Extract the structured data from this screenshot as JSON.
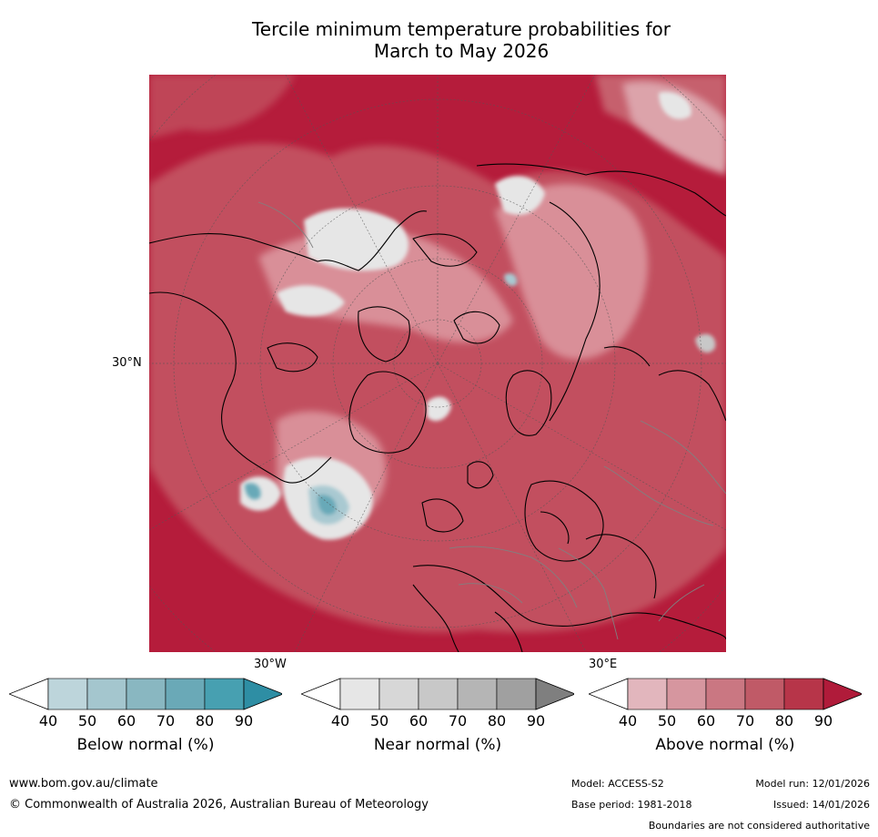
{
  "title_line1": "Tercile minimum temperature probabilities for",
  "title_line2": "March to May 2026",
  "map": {
    "label_30n": "30°N",
    "label_30w": "30°W",
    "label_30e": "30°E",
    "colors": {
      "dominant_above": "#b51c3b",
      "above_mid": "#c24f5e",
      "above_light": "#d98f98",
      "near_light": "#e6e6e6",
      "near_mid": "#c8c8c8",
      "below_light": "#a9c9d1",
      "below_mid": "#68a9b8",
      "coast": "#000000",
      "border": "#808080",
      "grid": "#555555"
    }
  },
  "colorbars": [
    {
      "title": "Below normal (%)",
      "ticks": [
        "40",
        "50",
        "60",
        "70",
        "80",
        "90"
      ],
      "colors": [
        "#ffffff",
        "#bdd5db",
        "#a4c6ce",
        "#89b7c1",
        "#6aa9b7",
        "#47a0b1",
        "#2e8ea4"
      ]
    },
    {
      "title": "Near normal (%)",
      "ticks": [
        "40",
        "50",
        "60",
        "70",
        "80",
        "90"
      ],
      "colors": [
        "#ffffff",
        "#e6e6e6",
        "#d7d7d7",
        "#c8c8c8",
        "#b5b5b5",
        "#a0a0a0",
        "#7f7f7f"
      ]
    },
    {
      "title": "Above normal (%)",
      "ticks": [
        "40",
        "50",
        "60",
        "70",
        "80",
        "90"
      ],
      "colors": [
        "#ffffff",
        "#e2b6bd",
        "#d6969f",
        "#ca7782",
        "#c05a67",
        "#b73549",
        "#b01b3a"
      ]
    }
  ],
  "footer": {
    "url": "www.bom.gov.au/climate",
    "copyright": "© Commonwealth of Australia 2026, Australian Bureau of Meteorology",
    "model": "Model: ACCESS-S2",
    "model_run": "Model run: 12/01/2026",
    "base_period": "Base period: 1981-2018",
    "issued": "Issued: 14/01/2026",
    "disclaimer": "Boundaries are not considered authoritative"
  }
}
